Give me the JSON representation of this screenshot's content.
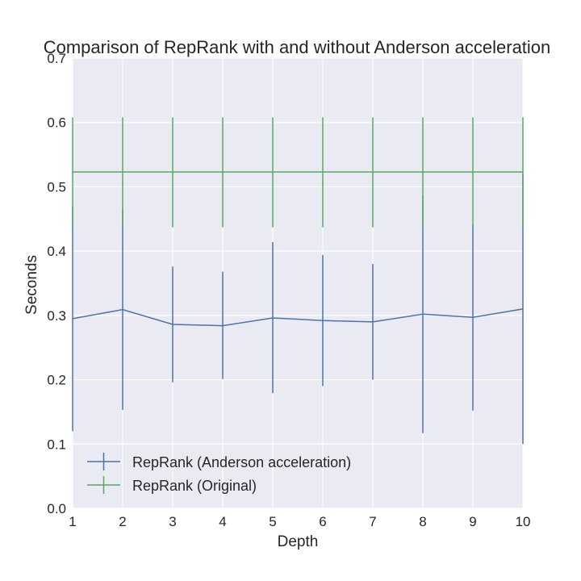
{
  "chart_data": {
    "type": "line",
    "title": "Comparison of RepRank with and without Anderson acceleration",
    "xlabel": "Depth",
    "ylabel": "Seconds",
    "xlim": [
      1,
      10
    ],
    "ylim": [
      0.0,
      0.7
    ],
    "x": [
      1,
      2,
      3,
      4,
      5,
      6,
      7,
      8,
      9,
      10
    ],
    "xticks": [
      "1",
      "2",
      "3",
      "4",
      "5",
      "6",
      "7",
      "8",
      "9",
      "10"
    ],
    "yticks": [
      "0.0",
      "0.1",
      "0.2",
      "0.3",
      "0.4",
      "0.5",
      "0.6",
      "0.7"
    ],
    "ytick_values": [
      0.0,
      0.1,
      0.2,
      0.3,
      0.4,
      0.5,
      0.6,
      0.7
    ],
    "grid": true,
    "legend_position": "bottom-left",
    "series": [
      {
        "name": "RepRank (Anderson acceleration)",
        "color": "#4c72b0",
        "values": [
          0.295,
          0.309,
          0.286,
          0.284,
          0.296,
          0.292,
          0.29,
          0.302,
          0.297,
          0.31
        ],
        "err_low": [
          0.12,
          0.153,
          0.196,
          0.201,
          0.179,
          0.19,
          0.2,
          0.117,
          0.152,
          0.1
        ],
        "err_high": [
          0.47,
          0.465,
          0.376,
          0.368,
          0.414,
          0.394,
          0.38,
          0.487,
          0.442,
          0.52
        ]
      },
      {
        "name": "RepRank (Original)",
        "color": "#55a868",
        "values": [
          0.523,
          0.523,
          0.523,
          0.523,
          0.523,
          0.523,
          0.523,
          0.523,
          0.523,
          0.523
        ],
        "err_low": [
          0.437,
          0.437,
          0.437,
          0.437,
          0.437,
          0.437,
          0.437,
          0.437,
          0.437,
          0.437
        ],
        "err_high": [
          0.608,
          0.608,
          0.608,
          0.608,
          0.608,
          0.608,
          0.608,
          0.608,
          0.608,
          0.608
        ]
      }
    ]
  }
}
